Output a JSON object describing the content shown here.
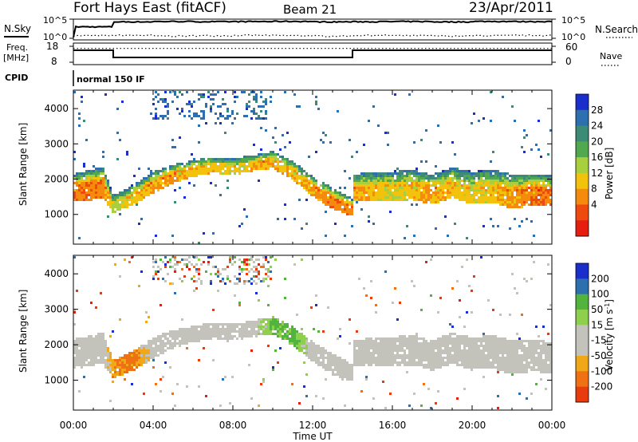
{
  "header": {
    "station": "Fort Hays East (fitACF)",
    "beam": "Beam 21",
    "date": "23/Apr/2011"
  },
  "top_panels": {
    "nsky_label": "N.Sky",
    "nsky_ticks": [
      "10^5",
      "10^0"
    ],
    "nsearch_label": "N.Search",
    "nsearch_ticks": [
      "10^5",
      "10^0"
    ],
    "freq_label": [
      "Freq.",
      "[MHz]"
    ],
    "freq_ticks": [
      "18",
      "8"
    ],
    "nave_label": "Nave",
    "nave_ticks": [
      "60",
      "0"
    ],
    "cpid_label": "CPID",
    "cpid_value": "normal 150 IF"
  },
  "colors": {
    "power": [
      "#1a2ecc",
      "#2e6fb0",
      "#3d8a76",
      "#52a84e",
      "#a8cf3e",
      "#f2c20c",
      "#f58a0c",
      "#ef4a0e",
      "#e51e10"
    ],
    "velocity": [
      "#1a2ecc",
      "#2e6fb0",
      "#52b43c",
      "#8ed04e",
      "#c3c3bc",
      "#c3c3bc",
      "#f0a818",
      "#f07014",
      "#e83c0e",
      "#e51e10"
    ]
  },
  "chart_data": [
    {
      "type": "line",
      "title": "N.Sky / N.Search",
      "x": [
        "00:00",
        "02:00",
        "04:00",
        "06:00",
        "08:00",
        "10:00",
        "12:00",
        "14:00",
        "16:00",
        "18:00",
        "20:00",
        "22:00",
        "24:00"
      ],
      "series": [
        {
          "name": "N.Sky",
          "values": [
            1000,
            20000,
            25000,
            22000,
            24000,
            26000,
            20000,
            22000,
            24000,
            20000,
            26000,
            24000,
            22000
          ]
        },
        {
          "name": "N.Search",
          "values": [
            5,
            6,
            4,
            5,
            6,
            5,
            4,
            6,
            5,
            4,
            5,
            6,
            5
          ]
        }
      ],
      "yscale": "log",
      "ylim": [
        "10^0",
        "10^5"
      ]
    },
    {
      "type": "line",
      "title": "Freq. / Nave",
      "x": [
        "00:00",
        "02:00",
        "14:00",
        "24:00"
      ],
      "series": [
        {
          "name": "Freq.",
          "values": [
            15.5,
            11,
            15.5,
            15.5
          ]
        },
        {
          "name": "Nave",
          "values": [
            52,
            52,
            52,
            52
          ]
        }
      ],
      "ylim": [
        8,
        18
      ]
    },
    {
      "type": "heatmap",
      "title": "Power",
      "xlabel": "Time UT",
      "ylabel": "Slant Range [km]",
      "x_ticks": [
        "00:00",
        "04:00",
        "08:00",
        "12:00",
        "16:00",
        "20:00",
        "00:00"
      ],
      "y_ticks": [
        "1000",
        "2000",
        "3000",
        "4000"
      ],
      "ylim": [
        180,
        4500
      ],
      "colorbar": {
        "label": "Power [dB]",
        "ticks": [
          "28",
          "24",
          "20",
          "16",
          "12",
          "8",
          "4"
        ]
      },
      "bands": {
        "hours": [
          0,
          1.5,
          2,
          3,
          4,
          5,
          6,
          7,
          8,
          9,
          10,
          11,
          12,
          13,
          14,
          14.01,
          15,
          16,
          17,
          18,
          19,
          20,
          21,
          22,
          23,
          24
        ],
        "center_km": [
          1750,
          1900,
          1300,
          1550,
          1900,
          2150,
          2300,
          2400,
          2350,
          2450,
          2550,
          2250,
          1800,
          1450,
          1200,
          1750,
          1800,
          1800,
          1850,
          1700,
          1900,
          1750,
          1800,
          1650,
          1700,
          1650
        ],
        "halfwidth_km": [
          400,
          450,
          250,
          280,
          300,
          260,
          230,
          220,
          230,
          230,
          240,
          260,
          280,
          300,
          250,
          380,
          400,
          420,
          430,
          420,
          440,
          460,
          470,
          480,
          460,
          440
        ],
        "peak_db": [
          26,
          26,
          18,
          22,
          24,
          24,
          22,
          22,
          20,
          22,
          24,
          22,
          24,
          26,
          26,
          24,
          22,
          20,
          22,
          24,
          22,
          20,
          22,
          24,
          26,
          26
        ]
      }
    },
    {
      "type": "heatmap",
      "title": "Velocity",
      "xlabel": "Time UT",
      "ylabel": "Slant Range [km]",
      "x_ticks": [
        "00:00",
        "04:00",
        "08:00",
        "12:00",
        "16:00",
        "20:00",
        "00:00"
      ],
      "y_ticks": [
        "1000",
        "2000",
        "3000",
        "4000"
      ],
      "ylim": [
        180,
        4500
      ],
      "colorbar": {
        "label": "Velocity [m s^-1]",
        "ticks": [
          "200",
          "100",
          "50",
          "15",
          "-15",
          "-50",
          "-100",
          "-200"
        ]
      },
      "bands": {
        "hours": [
          0,
          1.5,
          2,
          3,
          4,
          5,
          6,
          7,
          8,
          9,
          10,
          11,
          12,
          13,
          14,
          14.01,
          15,
          16,
          17,
          18,
          19,
          20,
          21,
          22,
          23,
          24
        ],
        "center_km": [
          1750,
          1900,
          1300,
          1550,
          1900,
          2150,
          2300,
          2400,
          2350,
          2450,
          2550,
          2250,
          1800,
          1450,
          1200,
          1750,
          1800,
          1800,
          1850,
          1700,
          1900,
          1750,
          1800,
          1650,
          1700,
          1650
        ],
        "halfwidth_km": [
          400,
          450,
          250,
          280,
          300,
          260,
          230,
          220,
          230,
          230,
          240,
          260,
          280,
          300,
          250,
          380,
          400,
          420,
          430,
          420,
          440,
          460,
          470,
          480,
          460,
          440
        ],
        "velocity": [
          0,
          0,
          -30,
          -40,
          0,
          0,
          0,
          0,
          0,
          0,
          30,
          40,
          0,
          0,
          0,
          0,
          0,
          0,
          0,
          0,
          0,
          0,
          0,
          0,
          0,
          0
        ]
      }
    }
  ],
  "axis": {
    "x_ticks": [
      "00:00",
      "04:00",
      "08:00",
      "12:00",
      "16:00",
      "20:00",
      "00:00"
    ],
    "xlabel": "Time UT",
    "ylabel": "Slant Range [km]"
  }
}
